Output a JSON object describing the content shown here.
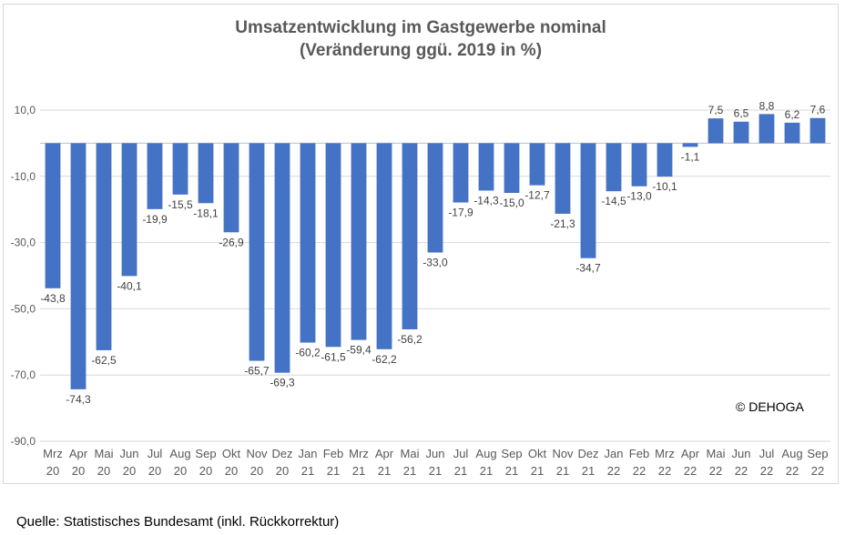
{
  "chart": {
    "title_line1": "Umsatzentwicklung im Gastgewerbe nominal",
    "title_line2": "(Veränderung ggü. 2019 in %)",
    "copyright": "© DEHOGA",
    "source": "Quelle: Statistisches Bundesamt (inkl. Rückkorrektur)"
  },
  "colors": {
    "bar": "#4472c4",
    "grid": "#d9d9d9",
    "axis": "#bfbfbf"
  },
  "chart_data": {
    "type": "bar",
    "title": "Umsatzentwicklung im Gastgewerbe nominal (Veränderung ggü. 2019 in %)",
    "ylim": [
      -90,
      10
    ],
    "yticks": [
      "10,0",
      "-10,0",
      "-30,0",
      "-50,0",
      "-70,0",
      "-90,0"
    ],
    "ytick_values": [
      10,
      -10,
      -30,
      -50,
      -70,
      -90
    ],
    "grid": true,
    "categories": [
      [
        "Mrz",
        "20"
      ],
      [
        "Apr",
        "20"
      ],
      [
        "Mai",
        "20"
      ],
      [
        "Jun",
        "20"
      ],
      [
        "Jul",
        "20"
      ],
      [
        "Aug",
        "20"
      ],
      [
        "Sep",
        "20"
      ],
      [
        "Okt",
        "20"
      ],
      [
        "Nov",
        "20"
      ],
      [
        "Dez",
        "20"
      ],
      [
        "Jan",
        "21"
      ],
      [
        "Feb",
        "21"
      ],
      [
        "Mrz",
        "21"
      ],
      [
        "Apr",
        "21"
      ],
      [
        "Mai",
        "21"
      ],
      [
        "Jun",
        "21"
      ],
      [
        "Jul",
        "21"
      ],
      [
        "Aug",
        "21"
      ],
      [
        "Sep",
        "21"
      ],
      [
        "Okt",
        "21"
      ],
      [
        "Nov",
        "21"
      ],
      [
        "Dez",
        "21"
      ],
      [
        "Jan",
        "22"
      ],
      [
        "Feb",
        "22"
      ],
      [
        "Mrz",
        "22"
      ],
      [
        "Apr",
        "22"
      ],
      [
        "Mai",
        "22"
      ],
      [
        "Jun",
        "22"
      ],
      [
        "Jul",
        "22"
      ],
      [
        "Aug",
        "22"
      ],
      [
        "Sep",
        "22"
      ]
    ],
    "values": [
      -43.8,
      -74.3,
      -62.5,
      -40.1,
      -19.9,
      -15.5,
      -18.1,
      -26.9,
      -65.7,
      -69.3,
      -60.2,
      -61.5,
      -59.4,
      -62.2,
      -56.2,
      -33.0,
      -17.9,
      -14.3,
      -15.0,
      -12.7,
      -21.3,
      -34.7,
      -14.5,
      -13.0,
      -10.1,
      -1.1,
      7.5,
      6.5,
      8.8,
      6.2,
      7.6
    ],
    "labels": [
      "-43,8",
      "-74,3",
      "-62,5",
      "-40,1",
      "-19,9",
      "-15,5",
      "-18,1",
      "-26,9",
      "-65,7",
      "-69,3",
      "-60,2",
      "-61,5",
      "-59,4",
      "-62,2",
      "-56,2",
      "-33,0",
      "-17,9",
      "-14,3",
      "-15,0",
      "-12,7",
      "-21,3",
      "-34,7",
      "-14,5",
      "-13,0",
      "-10,1",
      "-1,1",
      "7,5",
      "6,5",
      "8,8",
      "6,2",
      "7,6"
    ]
  }
}
